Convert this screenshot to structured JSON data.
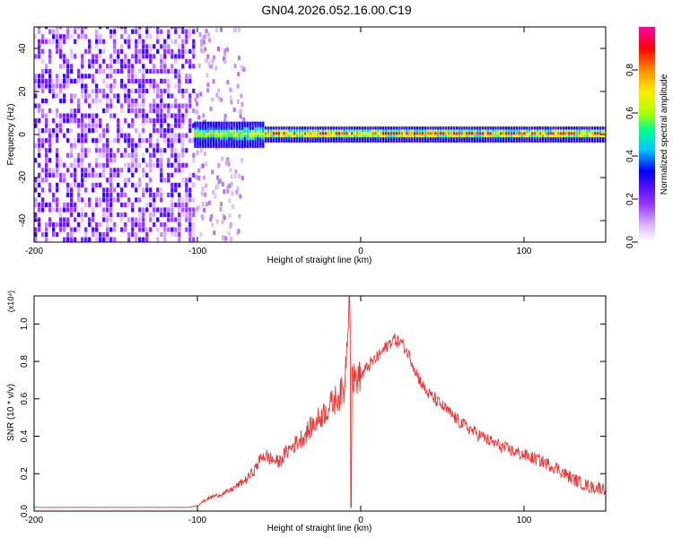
{
  "title": "GN04.2026.052.16.00.C19",
  "chart_data": [
    {
      "type": "heatmap",
      "xlabel": "Height of straight line (km)",
      "ylabel": "Frequency (Hz)",
      "xlim": [
        -200,
        150
      ],
      "ylim": [
        -50,
        50
      ],
      "x_ticks": [
        -200,
        -100,
        0,
        100
      ],
      "y_ticks": [
        40,
        20,
        0,
        -20,
        -40
      ],
      "colorbar": {
        "label": "Normalized spectral amplitude",
        "range": [
          0,
          1
        ],
        "ticks": [
          "0.0",
          "0.2",
          "0.4",
          "0.6",
          "0.8"
        ],
        "colors": [
          "#ffffff",
          "#d8b8ff",
          "#9a3cff",
          "#5a12ff",
          "#0000ff",
          "#00c8ff",
          "#00ff90",
          "#a8ff00",
          "#ffee00",
          "#ff8c00",
          "#ff0000",
          "#ff00aa"
        ]
      },
      "regions": [
        {
          "x": [
            -200,
            -102
          ],
          "description_value": "broadband noise",
          "amplitude": [
            0.1,
            0.3
          ]
        },
        {
          "x": [
            -102,
            150
          ],
          "center_frequency": 0,
          "amplitude": [
            0.6,
            1.0
          ]
        }
      ]
    },
    {
      "type": "line",
      "xlabel": "Height of straight line (km)",
      "ylabel": "SNR (10 * v/v)",
      "y_multiplier": "(x10⁴)",
      "xlim": [
        -200,
        150
      ],
      "ylim": [
        0,
        1.15
      ],
      "x_ticks": [
        -200,
        -100,
        0,
        100
      ],
      "y_ticks": [
        "0.0",
        "0.2",
        "0.4",
        "0.6",
        "0.8",
        "1.0"
      ],
      "color": "#ee3333",
      "x": [
        -200,
        -180,
        -160,
        -140,
        -120,
        -105,
        -100,
        -95,
        -90,
        -85,
        -80,
        -75,
        -70,
        -65,
        -60,
        -55,
        -50,
        -45,
        -40,
        -35,
        -30,
        -25,
        -20,
        -15,
        -10,
        -7,
        -5,
        0,
        5,
        10,
        15,
        20,
        25,
        30,
        35,
        40,
        50,
        60,
        70,
        80,
        90,
        100,
        110,
        120,
        130,
        140,
        150
      ],
      "y": [
        0.02,
        0.02,
        0.02,
        0.02,
        0.02,
        0.02,
        0.03,
        0.06,
        0.08,
        0.09,
        0.11,
        0.14,
        0.17,
        0.22,
        0.3,
        0.28,
        0.26,
        0.32,
        0.36,
        0.4,
        0.45,
        0.5,
        0.55,
        0.6,
        0.65,
        1.15,
        0.7,
        0.72,
        0.78,
        0.82,
        0.87,
        0.92,
        0.9,
        0.83,
        0.72,
        0.64,
        0.56,
        0.48,
        0.42,
        0.37,
        0.33,
        0.3,
        0.27,
        0.23,
        0.17,
        0.13,
        0.12
      ]
    }
  ]
}
